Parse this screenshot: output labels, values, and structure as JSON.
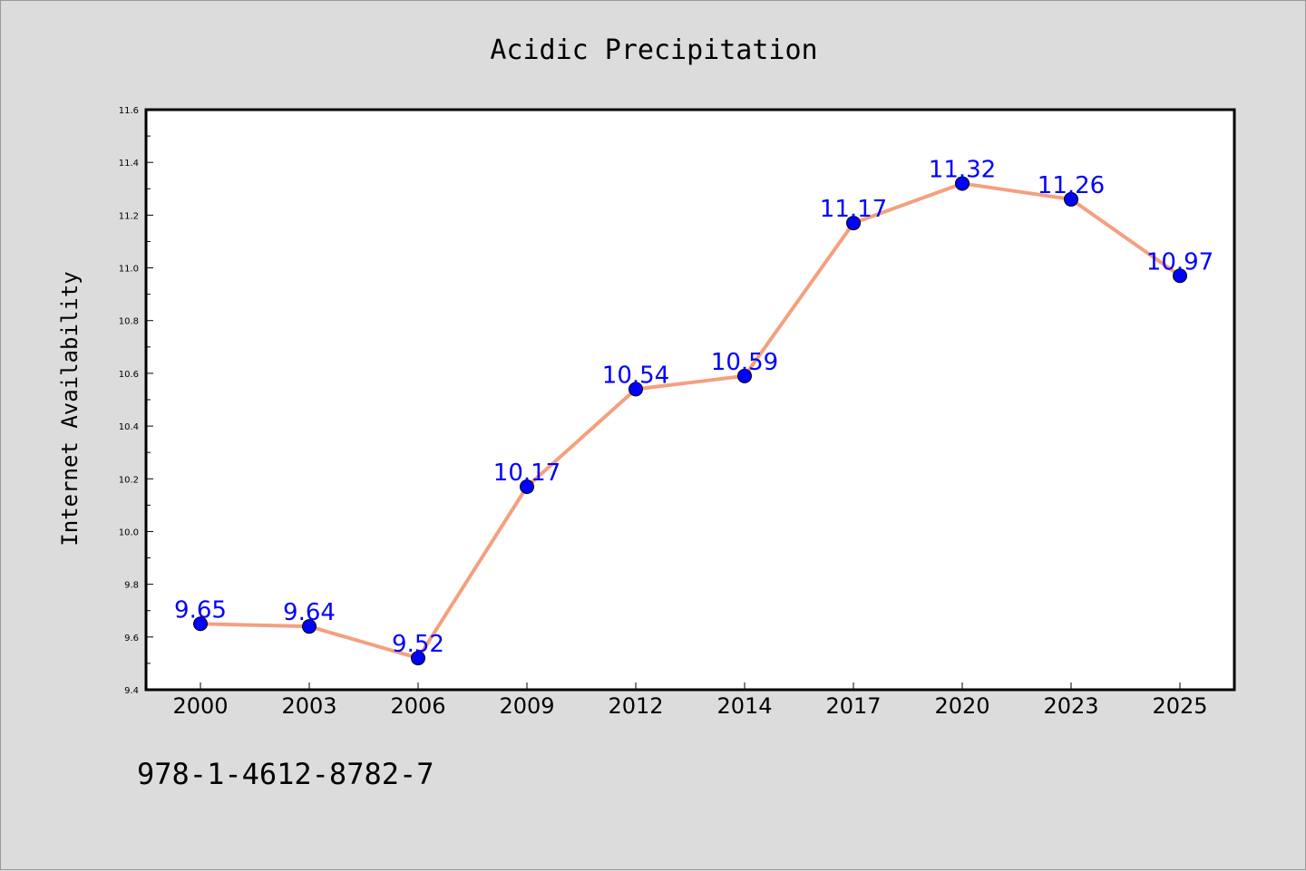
{
  "chart_data": {
    "type": "line",
    "title": "Acidic Precipitation",
    "xlabel": "",
    "ylabel": "Internet Availability",
    "categories": [
      "2000",
      "2003",
      "2006",
      "2009",
      "2012",
      "2014",
      "2017",
      "2020",
      "2023",
      "2025"
    ],
    "series": [
      {
        "values": [
          9.65,
          9.64,
          9.52,
          10.17,
          10.54,
          10.59,
          11.17,
          11.32,
          11.26,
          10.97
        ],
        "line_color": "#f4a07f",
        "marker_color": "#0000ff"
      }
    ],
    "data_labels": [
      "9.65",
      "9.64",
      "9.52",
      "10.17",
      "10.54",
      "10.59",
      "11.17",
      "11.32",
      "11.26",
      "10.97"
    ],
    "ylim": [
      9.4,
      11.6
    ],
    "yticks": [
      "9.4",
      "9.6",
      "9.8",
      "10.0",
      "10.2",
      "10.4",
      "10.6",
      "10.8",
      "11.0",
      "11.2",
      "11.4",
      "11.6"
    ],
    "grid": false,
    "legend": "none"
  },
  "footer": {
    "code": "978-1-4612-8782-7"
  }
}
